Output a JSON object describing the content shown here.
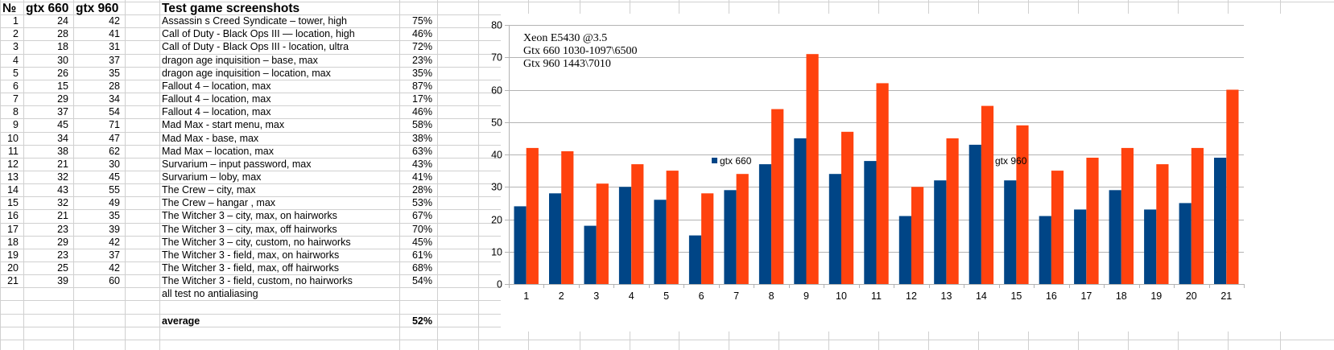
{
  "table": {
    "headers": {
      "no": "№",
      "g660": "gtx 660",
      "g960": "gtx 960",
      "title": "Test game screenshots"
    },
    "rows": [
      {
        "n": "1",
        "a": "24",
        "b": "42",
        "name": "Assassin s Creed Syndicate – tower, high",
        "pct": "75%"
      },
      {
        "n": "2",
        "a": "28",
        "b": "41",
        "name": "Call of Duty - Black Ops III — location, high",
        "pct": "46%"
      },
      {
        "n": "3",
        "a": "18",
        "b": "31",
        "name": "Call of Duty - Black Ops III - location, ultra",
        "pct": "72%"
      },
      {
        "n": "4",
        "a": "30",
        "b": "37",
        "name": "dragon age inquisition – base, max",
        "pct": "23%"
      },
      {
        "n": "5",
        "a": "26",
        "b": "35",
        "name": "dragon age inquisition – location, max",
        "pct": "35%"
      },
      {
        "n": "6",
        "a": "15",
        "b": "28",
        "name": "Fallout 4 – location, max",
        "pct": "87%"
      },
      {
        "n": "7",
        "a": "29",
        "b": "34",
        "name": "Fallout 4 – location, max",
        "pct": "17%"
      },
      {
        "n": "8",
        "a": "37",
        "b": "54",
        "name": "Fallout 4 – location, max",
        "pct": "46%"
      },
      {
        "n": "9",
        "a": "45",
        "b": "71",
        "name": "Mad Max - start menu, max",
        "pct": "58%"
      },
      {
        "n": "10",
        "a": "34",
        "b": "47",
        "name": "Mad Max - base, max",
        "pct": "38%"
      },
      {
        "n": "11",
        "a": "38",
        "b": "62",
        "name": "Mad Max – location, max",
        "pct": "63%"
      },
      {
        "n": "12",
        "a": "21",
        "b": "30",
        "name": "Survarium – input password, max",
        "pct": "43%"
      },
      {
        "n": "13",
        "a": "32",
        "b": "45",
        "name": "Survarium – loby, max",
        "pct": "41%"
      },
      {
        "n": "14",
        "a": "43",
        "b": "55",
        "name": "The Crew – city, max",
        "pct": "28%"
      },
      {
        "n": "15",
        "a": "32",
        "b": "49",
        "name": "The Crew – hangar , max",
        "pct": "53%"
      },
      {
        "n": "16",
        "a": "21",
        "b": "35",
        "name": "The Witcher 3 – city, max, on hairworks",
        "pct": "67%"
      },
      {
        "n": "17",
        "a": "23",
        "b": "39",
        "name": "The Witcher 3 – city, max, off hairworks",
        "pct": "70%"
      },
      {
        "n": "18",
        "a": "29",
        "b": "42",
        "name": "The Witcher 3 – city, custom, no hairworks",
        "pct": "45%"
      },
      {
        "n": "19",
        "a": "23",
        "b": "37",
        "name": "The Witcher 3  - field, max, on hairworks",
        "pct": "61%"
      },
      {
        "n": "20",
        "a": "25",
        "b": "42",
        "name": "The Witcher 3  - field, max, off hairworks",
        "pct": "68%"
      },
      {
        "n": "21",
        "a": "39",
        "b": "60",
        "name": "The Witcher 3  - field, custom, no hairworks",
        "pct": "54%"
      }
    ],
    "note": "all test no antialiasing",
    "average_label": "average",
    "average_value": "52%"
  },
  "colors": {
    "gtx660": "#004586",
    "gtx960": "#ff420e",
    "grid": "#b3b3b3",
    "cellgrid": "#d0d0d0"
  },
  "chart_data": {
    "type": "bar",
    "categories": [
      "1",
      "2",
      "3",
      "4",
      "5",
      "6",
      "7",
      "8",
      "9",
      "10",
      "11",
      "12",
      "13",
      "14",
      "15",
      "16",
      "17",
      "18",
      "19",
      "20",
      "21"
    ],
    "series": [
      {
        "name": "gtx 660",
        "values": [
          24,
          28,
          18,
          30,
          26,
          15,
          29,
          37,
          45,
          34,
          38,
          21,
          32,
          43,
          32,
          21,
          23,
          29,
          23,
          25,
          39
        ]
      },
      {
        "name": "gtx 960",
        "values": [
          42,
          41,
          31,
          37,
          35,
          28,
          34,
          54,
          71,
          47,
          62,
          30,
          45,
          55,
          49,
          35,
          39,
          42,
          37,
          42,
          60
        ]
      }
    ],
    "yticks": [
      0,
      10,
      20,
      30,
      40,
      50,
      60,
      70,
      80
    ],
    "ylim": [
      0,
      80
    ],
    "grid": true,
    "annotation_lines": [
      "Xeon E5430 @3.5",
      "Gtx 660 1030-1097\\6500",
      "Gtx 960 1443\\7010"
    ],
    "legend": [
      {
        "name": "gtx 660",
        "placement": "middle-left"
      },
      {
        "name": "gtx 960",
        "placement": "middle-right"
      }
    ]
  }
}
